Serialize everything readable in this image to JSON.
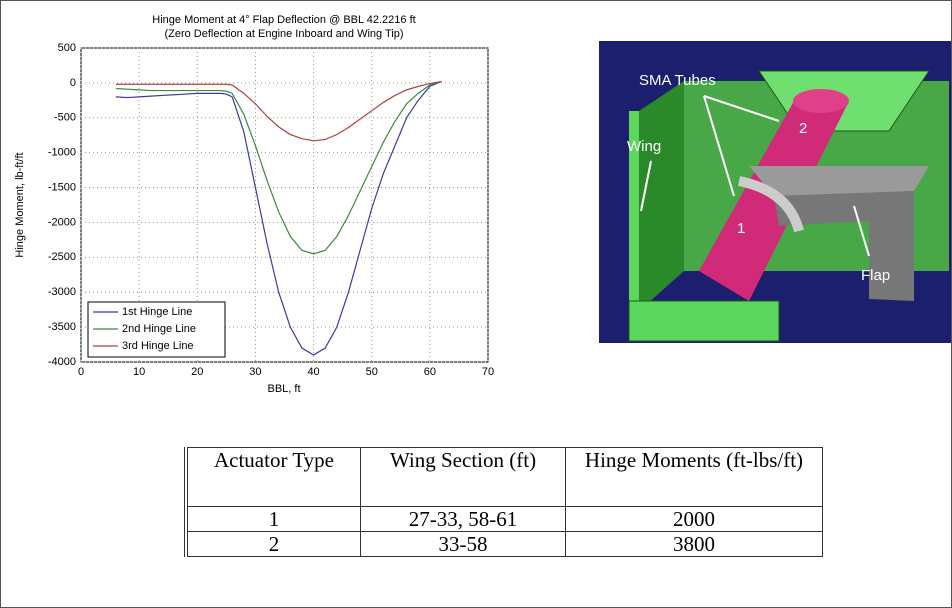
{
  "chart_data": {
    "type": "line",
    "title": "Hinge Moment at 4° Flap Deflection @ BBL 42.2216 ft",
    "subtitle": "(Zero Deflection at Engine Inboard and Wing Tip)",
    "x_label": "BBL, ft",
    "y_label": "Hinge Moment, lb-ft/ft",
    "x": [
      6,
      8,
      10,
      12,
      14,
      16,
      18,
      20,
      22,
      24,
      25,
      26,
      28,
      30,
      32,
      34,
      36,
      38,
      40,
      42,
      44,
      46,
      48,
      50,
      52,
      54,
      56,
      58,
      60,
      62
    ],
    "series": [
      {
        "name": "1st Hinge Line",
        "color": "#3a3aa0",
        "values": [
          -200,
          -210,
          -200,
          -190,
          -180,
          -170,
          -160,
          -150,
          -150,
          -150,
          -160,
          -200,
          -700,
          -1500,
          -2300,
          -3000,
          -3500,
          -3800,
          -3900,
          -3800,
          -3500,
          -3000,
          -2400,
          -1800,
          -1300,
          -900,
          -500,
          -250,
          -50,
          20
        ]
      },
      {
        "name": "2nd Hinge Line",
        "color": "#3a8a3a",
        "values": [
          -80,
          -90,
          -100,
          -110,
          -110,
          -110,
          -110,
          -110,
          -110,
          -110,
          -120,
          -150,
          -450,
          -900,
          -1400,
          -1850,
          -2200,
          -2400,
          -2450,
          -2400,
          -2200,
          -1900,
          -1550,
          -1200,
          -850,
          -550,
          -300,
          -150,
          -30,
          20
        ]
      },
      {
        "name": "3rd Hinge Line",
        "color": "#b04040",
        "values": [
          -20,
          -20,
          -20,
          -20,
          -20,
          -20,
          -20,
          -20,
          -20,
          -20,
          -20,
          -30,
          -150,
          -300,
          -480,
          -630,
          -740,
          -800,
          -830,
          -810,
          -740,
          -640,
          -520,
          -400,
          -280,
          -180,
          -100,
          -50,
          -10,
          20
        ]
      }
    ],
    "xlim": [
      0,
      70
    ],
    "xticks": [
      0,
      10,
      20,
      30,
      40,
      50,
      60,
      70
    ],
    "ylim": [
      -4000,
      500
    ],
    "yticks": [
      -4000,
      -3500,
      -3000,
      -2500,
      -2000,
      -1500,
      -1000,
      -500,
      0,
      500
    ],
    "grid": true,
    "legend": "lower-left"
  },
  "illustration": {
    "labels": [
      "SMA Tubes",
      "Wing",
      "Flap",
      "1",
      "2"
    ]
  },
  "table": {
    "header": [
      "Actuator Type",
      "Wing Section (ft)",
      "Hinge Moments (ft-lbs/ft)"
    ],
    "rows": [
      [
        "1",
        "27-33, 58-61",
        "2000"
      ],
      [
        "2",
        "33-58",
        "3800"
      ]
    ]
  }
}
